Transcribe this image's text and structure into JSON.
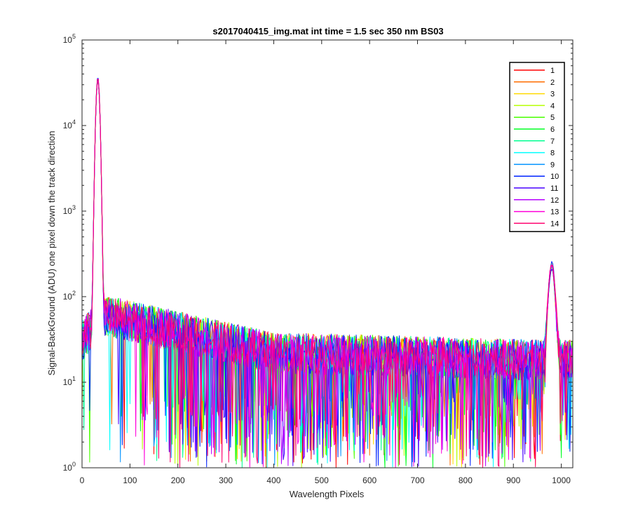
{
  "chart_data": {
    "type": "line",
    "title": "s2017040415_img.mat int time = 1.5 sec  350 nm BS03",
    "xlabel": "Wavelength Pixels",
    "ylabel": "Signal-BackGround (ADU) one pixel down the track direction",
    "xlim": [
      0,
      1024
    ],
    "ylim": [
      1,
      100000
    ],
    "yscale": "log",
    "x_ticks": [
      "0",
      "100",
      "200",
      "300",
      "400",
      "500",
      "600",
      "700",
      "800",
      "900",
      "1000"
    ],
    "y_ticks": [
      {
        "base": "10",
        "exp": "0"
      },
      {
        "base": "10",
        "exp": "1"
      },
      {
        "base": "10",
        "exp": "2"
      },
      {
        "base": "10",
        "exp": "3"
      },
      {
        "base": "10",
        "exp": "4"
      },
      {
        "base": "10",
        "exp": "5"
      }
    ],
    "grid": false,
    "legend_position": "top-right",
    "features": {
      "peak_1": {
        "x": 33,
        "y": 37000
      },
      "peak_2": {
        "x": 980,
        "y": 230
      },
      "baseline_start": {
        "x": 50,
        "y": 60
      },
      "baseline_mid": {
        "x": 400,
        "y": 22
      },
      "baseline_end": {
        "x": 960,
        "y": 18
      },
      "edge_start": {
        "x": 0,
        "y": 30
      }
    },
    "series": [
      {
        "name": "1",
        "color": "#FF0000"
      },
      {
        "name": "2",
        "color": "#FF6D00"
      },
      {
        "name": "3",
        "color": "#FFDA00"
      },
      {
        "name": "4",
        "color": "#B6FF00"
      },
      {
        "name": "5",
        "color": "#49FF00"
      },
      {
        "name": "6",
        "color": "#00FF24"
      },
      {
        "name": "7",
        "color": "#00FF92"
      },
      {
        "name": "8",
        "color": "#00FFFF"
      },
      {
        "name": "9",
        "color": "#0092FF"
      },
      {
        "name": "10",
        "color": "#0024FF"
      },
      {
        "name": "11",
        "color": "#4900FF"
      },
      {
        "name": "12",
        "color": "#B600FF"
      },
      {
        "name": "13",
        "color": "#FF00DA"
      },
      {
        "name": "14",
        "color": "#FF006D"
      }
    ]
  }
}
